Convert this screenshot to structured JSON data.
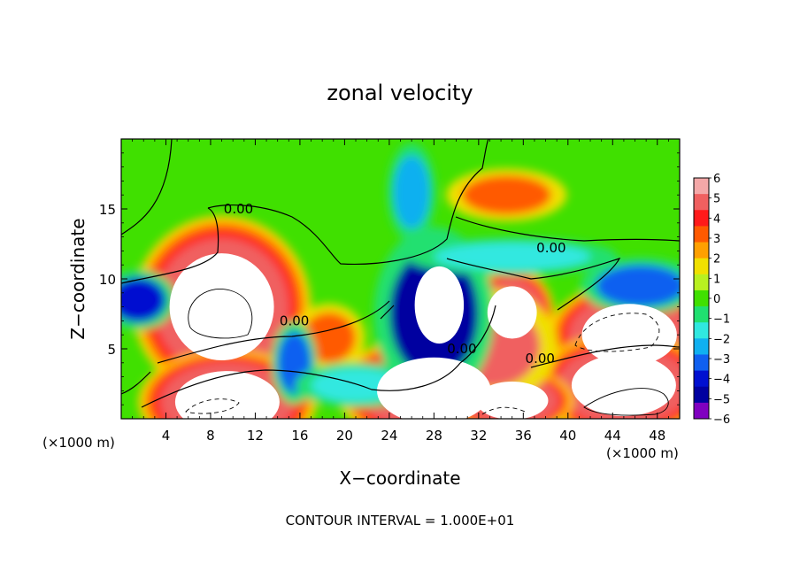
{
  "chart_data": {
    "type": "heatmap",
    "title": "zonal velocity",
    "xlabel": "X−coordinate",
    "ylabel": "Z−coordinate",
    "x_unit_left": "(×1000 m)",
    "x_unit_right": "(×1000 m)",
    "footer": "CONTOUR INTERVAL = 1.000E+01",
    "xlim": [
      0,
      50
    ],
    "ylim": [
      0,
      20
    ],
    "x_ticks": [
      "4",
      "8",
      "12",
      "16",
      "20",
      "24",
      "28",
      "32",
      "36",
      "40",
      "44",
      "48"
    ],
    "x_tick_values": [
      4,
      8,
      12,
      16,
      20,
      24,
      28,
      32,
      36,
      40,
      44,
      48
    ],
    "y_ticks": [
      "5",
      "10",
      "15"
    ],
    "y_tick_values": [
      5,
      10,
      15
    ],
    "contour_labels": [
      {
        "text": "0.00",
        "x": 10.5,
        "y": 15
      },
      {
        "text": "0.00",
        "x": 38.5,
        "y": 12.2
      },
      {
        "text": "0.00",
        "x": 15.5,
        "y": 7
      },
      {
        "text": "0.00",
        "x": 30.5,
        "y": 5
      },
      {
        "text": "0.00",
        "x": 37.5,
        "y": 4.3
      }
    ],
    "colorbar": {
      "labels": [
        "6",
        "5",
        "4",
        "3",
        "2",
        "1",
        "0",
        "−1",
        "−2",
        "−3",
        "−4",
        "−5",
        "−6"
      ],
      "levels": [
        6,
        5,
        4,
        3,
        2,
        1,
        0,
        -1,
        -2,
        -3,
        -4,
        -5,
        -6
      ],
      "colors": [
        "#f4a8a8",
        "#f06060",
        "#ff1a1a",
        "#ff5a00",
        "#ffa000",
        "#f0e000",
        "#b8f020",
        "#40e000",
        "#20e070",
        "#30e8e0",
        "#10b0f0",
        "#1060f0",
        "#0010d0",
        "#0000a0",
        "#8000c0"
      ]
    },
    "features": [
      {
        "kind": "positive-max",
        "cx": 9,
        "cy": 8,
        "rx": 5.5,
        "ry": 4.5
      },
      {
        "kind": "positive-max",
        "cx": 9.5,
        "cy": 1.2,
        "rx": 5.5,
        "ry": 2.6
      },
      {
        "kind": "positive-max",
        "cx": 28,
        "cy": 2,
        "rx": 6,
        "ry": 2.8
      },
      {
        "kind": "positive-max",
        "cx": 35,
        "cy": 7.6,
        "rx": 2.6,
        "ry": 2.2
      },
      {
        "kind": "positive-max",
        "cx": 45.5,
        "cy": 6,
        "rx": 5,
        "ry": 2.6
      },
      {
        "kind": "positive-max",
        "cx": 45,
        "cy": 2.4,
        "rx": 5.5,
        "ry": 2.6
      },
      {
        "kind": "positive-max",
        "cx": 35,
        "cy": 1.3,
        "rx": 3.8,
        "ry": 1.6
      },
      {
        "kind": "positive",
        "cx": 34.5,
        "cy": 16,
        "rx": 4,
        "ry": 1.4,
        "value": 3.2
      },
      {
        "kind": "positive",
        "cx": 18.6,
        "cy": 5.8,
        "rx": 2.4,
        "ry": 1.8,
        "value": 3.8
      },
      {
        "kind": "positive",
        "cx": 33,
        "cy": 5.2,
        "rx": 4.5,
        "ry": 3,
        "value": 4.8
      },
      {
        "kind": "negative",
        "cx": 28,
        "cy": 7.5,
        "rx": 4,
        "ry": 4.6,
        "value": -5.5
      },
      {
        "kind": "negative",
        "cx": 26,
        "cy": 16.2,
        "rx": 1.6,
        "ry": 2.6,
        "value": -2.2
      },
      {
        "kind": "negative",
        "cx": 15.5,
        "cy": 4,
        "rx": 1.5,
        "ry": 2.2,
        "value": -3.6
      },
      {
        "kind": "negative",
        "cx": 1.5,
        "cy": 8.5,
        "rx": 2.5,
        "ry": 1.6,
        "value": -4
      },
      {
        "kind": "negative",
        "cx": 46.5,
        "cy": 9.5,
        "rx": 4,
        "ry": 1.5,
        "value": -3.6
      },
      {
        "kind": "negative",
        "cx": 35,
        "cy": 11.6,
        "rx": 7,
        "ry": 1,
        "value": -1.6
      },
      {
        "kind": "negative",
        "cx": 21,
        "cy": 2.4,
        "rx": 4,
        "ry": 1.2,
        "value": -1.6
      }
    ]
  }
}
